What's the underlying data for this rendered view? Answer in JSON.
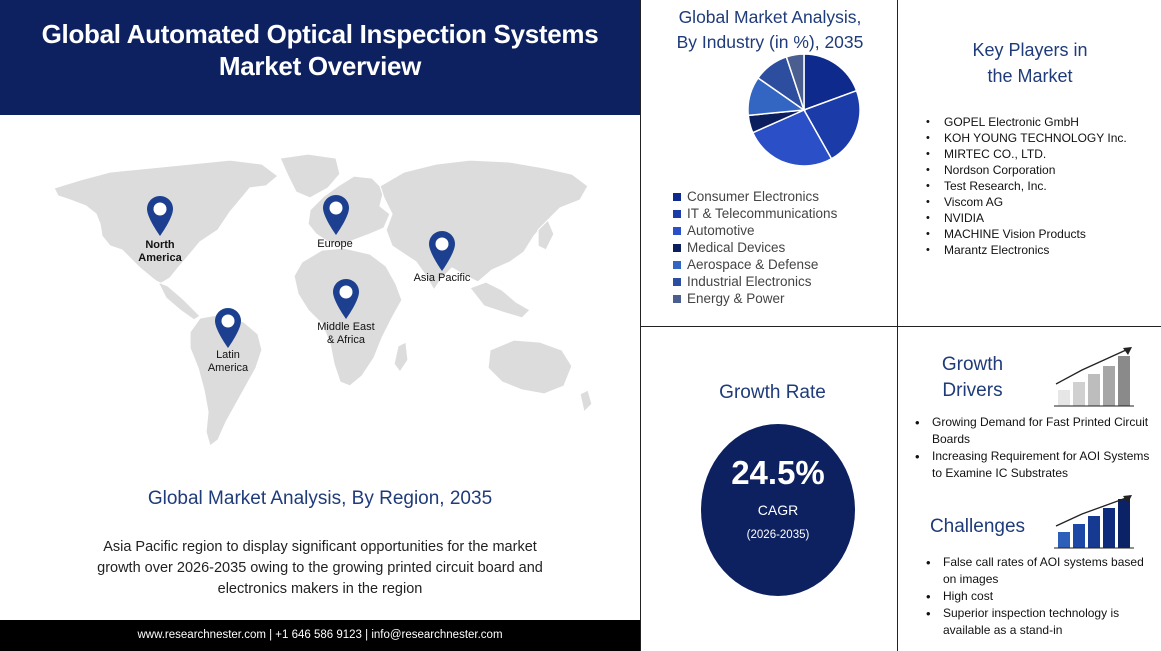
{
  "header": {
    "title_line1": "Global Automated Optical Inspection Systems",
    "title_line2": "Market Overview"
  },
  "map": {
    "regions": [
      {
        "label_line1": "North",
        "label_line2": "America"
      },
      {
        "label_line1": "Europe",
        "label_line2": ""
      },
      {
        "label_line1": "Asia Pacific",
        "label_line2": ""
      },
      {
        "label_line1": "Middle East",
        "label_line2": "& Africa"
      },
      {
        "label_line1": "Latin",
        "label_line2": "America"
      }
    ]
  },
  "region_analysis": {
    "heading": "Global Market Analysis, By Region, 2035",
    "description": "Asia Pacific region to display significant opportunities  for the market growth over 2026-2035 owing to the  growing printed circuit board and electronics makers in the region"
  },
  "footer": {
    "text": "www.researchnester.com  | +1 646 586 9123 | info@researchnester.com"
  },
  "chart_data": {
    "type": "pie",
    "title_line1": "Global Market Analysis,",
    "title_line2": "By Industry (in %), 2035",
    "categories": [
      "Consumer Electronics",
      "IT & Telecommunications",
      "Automotive",
      "Medical Devices",
      "Aerospace & Defense",
      "Industrial Electronics",
      "Energy & Power"
    ],
    "values": [
      19,
      22,
      26,
      5,
      11,
      10,
      5
    ],
    "colors": [
      "#0d2a8c",
      "#1a3ba8",
      "#2a4fc6",
      "#0b1f5e",
      "#3366c2",
      "#2d4e9e",
      "#4a5f8f"
    ],
    "legend_position": "bottom"
  },
  "key_players": {
    "title_line1": "Key Players in",
    "title_line2": "the Market",
    "items": [
      "GOPEL Electronic GmbH",
      "KOH YOUNG TECHNOLOGY Inc.",
      "MIRTEC CO., LTD.",
      "Nordson Corporation",
      "Test Research, Inc.",
      "Viscom AG",
      "NVIDIA",
      "MACHINE Vision Products",
      "Marantz Electronics"
    ]
  },
  "growth_rate": {
    "title": "Growth Rate",
    "value": "24.5%",
    "label": "CAGR",
    "years": "(2026-2035)"
  },
  "drivers": {
    "title_line1": "Growth",
    "title_line2": "Drivers",
    "items": [
      "Growing Demand for Fast Printed Circuit Boards",
      "Increasing Requirement for AOI Systems to Examine IC  Substrates"
    ]
  },
  "challenges": {
    "title": "Challenges",
    "items": [
      "False call rates of AOI systems based on images",
      "High cost",
      "Superior inspection technology is available as a stand-in"
    ]
  },
  "colors": {
    "navy": "#0d2160",
    "heading_blue": "#1f3b7a",
    "map_gray": "#dcdcdc",
    "pin_blue": "#1d3f8f"
  }
}
